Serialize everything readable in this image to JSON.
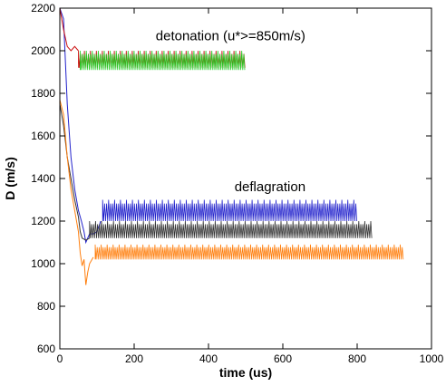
{
  "chart_data": {
    "type": "line",
    "title": "",
    "xlabel": "time (us)",
    "ylabel": "D (m/s)",
    "xlim": [
      0,
      1000
    ],
    "ylim": [
      600,
      2200
    ],
    "xticks": [
      0,
      200,
      400,
      600,
      800,
      1000
    ],
    "yticks": [
      600,
      800,
      1000,
      1200,
      1400,
      1600,
      1800,
      2000,
      2200
    ],
    "grid": false,
    "annotations": [
      "detonation  (u*>=850m/s)",
      "deflagration"
    ],
    "series": [
      {
        "color": "#2222cc",
        "transition": [
          [
            0,
            2200
          ],
          [
            10,
            2150
          ],
          [
            20,
            1750
          ],
          [
            30,
            1500
          ],
          [
            40,
            1350
          ],
          [
            50,
            1250
          ],
          [
            58,
            1200
          ],
          [
            65,
            1150
          ],
          [
            70,
            1100
          ],
          [
            80,
            1140
          ],
          [
            90,
            1140
          ],
          [
            100,
            1150
          ],
          [
            110,
            1200
          ]
        ],
        "oscillation": {
          "x_start": 115,
          "x_end": 800,
          "low": 1200,
          "high": 1300
        }
      },
      {
        "color": "#333333",
        "transition": [
          [
            0,
            1750
          ],
          [
            10,
            1650
          ],
          [
            20,
            1500
          ],
          [
            30,
            1400
          ],
          [
            40,
            1300
          ],
          [
            50,
            1220
          ],
          [
            55,
            1150
          ],
          [
            60,
            1120
          ],
          [
            70,
            1110
          ],
          [
            80,
            1120
          ]
        ],
        "oscillation": {
          "x_start": 80,
          "x_end": 840,
          "low": 1120,
          "high": 1200
        }
      },
      {
        "color": "#ff7f0e",
        "transition": [
          [
            0,
            1770
          ],
          [
            10,
            1700
          ],
          [
            20,
            1500
          ],
          [
            30,
            1350
          ],
          [
            40,
            1250
          ],
          [
            50,
            1150
          ],
          [
            55,
            1050
          ],
          [
            60,
            990
          ],
          [
            65,
            1020
          ],
          [
            70,
            900
          ],
          [
            75,
            960
          ],
          [
            80,
            1000
          ],
          [
            90,
            1030
          ]
        ],
        "oscillation": {
          "x_start": 95,
          "x_end": 925,
          "low": 1020,
          "high": 1090
        }
      },
      {
        "color": "#cc1111",
        "transition": [
          [
            0,
            2200
          ],
          [
            10,
            2100
          ],
          [
            20,
            2020
          ],
          [
            30,
            2000
          ],
          [
            40,
            2020
          ],
          [
            50,
            2000
          ]
        ],
        "oscillation": {
          "x_start": 50,
          "x_end": 500,
          "low": 1920,
          "high": 2000
        }
      },
      {
        "color": "#22cc22",
        "transition": [],
        "oscillation": {
          "x_start": 55,
          "x_end": 500,
          "low": 1910,
          "high": 2000
        }
      }
    ]
  }
}
